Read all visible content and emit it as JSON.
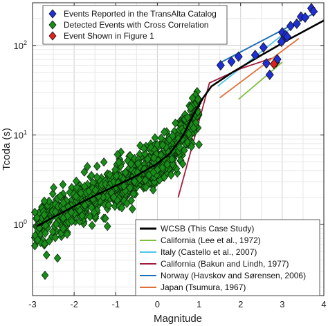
{
  "chart_data": {
    "type": "scatter",
    "xlabel": "Magnitude",
    "ylabel": "Tcoda (s)",
    "xlim": [
      -3,
      4
    ],
    "ylim": [
      0.16,
      300
    ],
    "yscale": "log",
    "x_ticks": [
      "-3",
      "-2",
      "-1",
      "0",
      "1",
      "2",
      "3",
      "4"
    ],
    "y_ticks": [
      {
        "base": "10",
        "exp": "0",
        "value": 1
      },
      {
        "base": "10",
        "exp": "1",
        "value": 10
      },
      {
        "base": "10",
        "exp": "2",
        "value": 100
      }
    ],
    "grid": true,
    "marker_legend": {
      "placement": "top-left",
      "entries": [
        {
          "label": "Events Reported in the TransAlta Catalog",
          "color": "#1f2fd6"
        },
        {
          "label": "Detected Events with Cross Correlation",
          "color": "#1a8c1a"
        },
        {
          "label": "Event Shown in Figure 1",
          "color": "#e0201a"
        }
      ]
    },
    "line_legend": {
      "placement": "bottom-right",
      "entries": [
        {
          "label": "WCSB (This Case Study)",
          "color": "#000000"
        },
        {
          "label": "California (Lee et al., 1972)",
          "color": "#7fbf3f"
        },
        {
          "label": "Italy (Castello et al., 2007)",
          "color": "#4fc3e8"
        },
        {
          "label": "California (Bakun and Lindh, 1977)",
          "color": "#a01c3a"
        },
        {
          "label": "Norway (Havskov and Sørensen, 2006)",
          "color": "#1f6fb8"
        },
        {
          "label": "Japan (Tsumura, 1967)",
          "color": "#e0703a"
        }
      ]
    },
    "series": [
      {
        "name": "Events Reported in the TransAlta Catalog",
        "marker": "diamond",
        "color": "#1f2fd6",
        "points": [
          [
            1.52,
            60
          ],
          [
            1.78,
            66
          ],
          [
            1.95,
            75
          ],
          [
            2.35,
            78
          ],
          [
            2.55,
            95
          ],
          [
            2.62,
            63
          ],
          [
            2.7,
            47
          ],
          [
            2.85,
            65
          ],
          [
            2.88,
            70
          ],
          [
            3.0,
            140
          ],
          [
            3.02,
            115
          ],
          [
            3.08,
            130
          ],
          [
            3.12,
            125
          ],
          [
            3.2,
            165
          ],
          [
            3.35,
            175
          ],
          [
            3.45,
            210
          ],
          [
            3.55,
            205
          ],
          [
            3.7,
            260
          ],
          [
            3.75,
            240
          ],
          [
            2.98,
            110
          ]
        ]
      },
      {
        "name": "Event Shown in Figure 1",
        "marker": "diamond",
        "color": "#e0201a",
        "points": [
          [
            2.8,
            62
          ]
        ]
      }
    ],
    "fit_lines": [
      {
        "name": "WCSB (This Case Study)",
        "color": "#000000",
        "width": 2.6,
        "points": [
          [
            -2.9,
            0.95
          ],
          [
            -2.5,
            1.2
          ],
          [
            -2.0,
            1.6
          ],
          [
            -1.5,
            2.1
          ],
          [
            -1.0,
            2.7
          ],
          [
            -0.5,
            3.5
          ],
          [
            0.0,
            4.8
          ],
          [
            0.3,
            6.2
          ],
          [
            0.6,
            9.5
          ],
          [
            0.9,
            18
          ],
          [
            1.1,
            26
          ],
          [
            1.3,
            35
          ],
          [
            1.8,
            50
          ],
          [
            2.5,
            78
          ],
          [
            3.2,
            120
          ],
          [
            4.0,
            190
          ]
        ]
      },
      {
        "name": "California (Lee et al., 1972)",
        "color": "#7fbf3f",
        "width": 1.8,
        "points": [
          [
            1.95,
            25
          ],
          [
            3.0,
            65
          ]
        ]
      },
      {
        "name": "Italy (Castello et al., 2007)",
        "color": "#4fc3e8",
        "width": 1.8,
        "points": [
          [
            1.45,
            35
          ],
          [
            3.5,
            200
          ]
        ]
      },
      {
        "name": "California (Bakun and Lindh, 1977)",
        "color": "#a01c3a",
        "width": 1.8,
        "points": [
          [
            0.5,
            2.0
          ],
          [
            1.25,
            38
          ],
          [
            2.0,
            55
          ],
          [
            2.75,
            72
          ]
        ]
      },
      {
        "name": "Norway (Havskov and Sørensen, 2006)",
        "color": "#1f6fb8",
        "width": 2.0,
        "points": [
          [
            1.45,
            62
          ],
          [
            3.85,
            240
          ]
        ]
      },
      {
        "name": "Japan (Tsumura, 1967)",
        "color": "#e0703a",
        "width": 1.8,
        "points": [
          [
            1.5,
            26
          ],
          [
            3.4,
            120
          ]
        ]
      }
    ],
    "green_cloud": {
      "name": "Detected Events with Cross Correlation",
      "color": "#1a8c1a",
      "count": 900,
      "x_range": [
        -2.95,
        1.0
      ],
      "note_points": [
        [
          1.0,
          7.8
        ],
        [
          -2.4,
          0.42
        ],
        [
          -2.7,
          0.27
        ],
        [
          -0.3,
          0.9
        ],
        [
          -1.2,
          0.95
        ]
      ]
    }
  }
}
